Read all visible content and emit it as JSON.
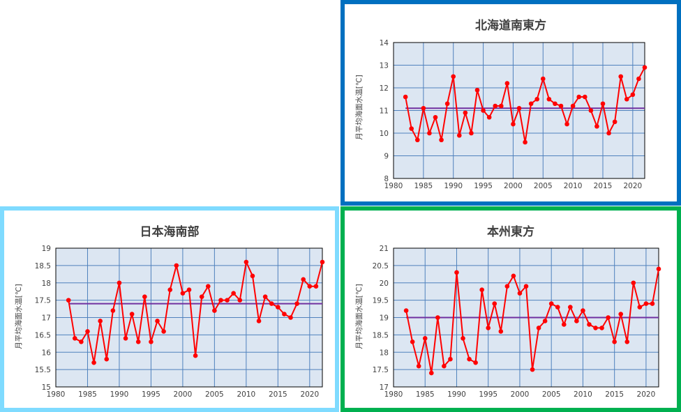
{
  "colors": {
    "border_top_right": "#0070c0",
    "border_bottom_left": "#7fdbff",
    "border_bottom_right": "#00b050",
    "series": "#ff0000",
    "average": "#7030a0",
    "plot_bg": "#dce6f2",
    "grid": "#4f81bd"
  },
  "chart_data": [
    {
      "id": "hokkaido",
      "type": "line",
      "title": "北海道南東方",
      "ylabel": "月平均海面水温[℃]",
      "xlabel": "",
      "xlim": [
        1980,
        2022
      ],
      "ylim": [
        8,
        14
      ],
      "xticks": [
        "1980",
        "1985",
        "1990",
        "1995",
        "2000",
        "2005",
        "2010",
        "2015",
        "2020"
      ],
      "yticks": [
        "8",
        "9",
        "10",
        "11",
        "12",
        "13",
        "14"
      ],
      "grid": true,
      "average": 11.1,
      "x": [
        1982,
        1983,
        1984,
        1985,
        1986,
        1987,
        1988,
        1989,
        1990,
        1991,
        1992,
        1993,
        1994,
        1995,
        1996,
        1997,
        1998,
        1999,
        2000,
        2001,
        2002,
        2003,
        2004,
        2005,
        2006,
        2007,
        2008,
        2009,
        2010,
        2011,
        2012,
        2013,
        2014,
        2015,
        2016,
        2017,
        2018,
        2019,
        2020,
        2021,
        2022
      ],
      "values": [
        11.6,
        10.2,
        9.7,
        11.1,
        10.0,
        10.7,
        9.7,
        11.3,
        12.5,
        9.9,
        10.9,
        10.0,
        11.9,
        11.0,
        10.7,
        11.2,
        11.2,
        12.2,
        10.4,
        11.1,
        9.6,
        11.3,
        11.5,
        12.4,
        11.5,
        11.3,
        11.2,
        10.4,
        11.2,
        11.6,
        11.6,
        11.0,
        10.3,
        11.3,
        10.0,
        10.5,
        12.5,
        11.5,
        11.7,
        12.4,
        12.9
      ]
    },
    {
      "id": "japansea",
      "type": "line",
      "title": "日本海南部",
      "ylabel": "月平均海面水温[℃]",
      "xlabel": "",
      "xlim": [
        1980,
        2022
      ],
      "ylim": [
        15,
        19
      ],
      "xticks": [
        "1980",
        "1985",
        "1990",
        "1995",
        "2000",
        "2005",
        "2010",
        "2015",
        "2020"
      ],
      "yticks": [
        "15",
        "15.5",
        "16",
        "16.5",
        "17",
        "17.5",
        "18",
        "18.5",
        "19"
      ],
      "grid": true,
      "average": 17.4,
      "x": [
        1982,
        1983,
        1984,
        1985,
        1986,
        1987,
        1988,
        1989,
        1990,
        1991,
        1992,
        1993,
        1994,
        1995,
        1996,
        1997,
        1998,
        1999,
        2000,
        2001,
        2002,
        2003,
        2004,
        2005,
        2006,
        2007,
        2008,
        2009,
        2010,
        2011,
        2012,
        2013,
        2014,
        2015,
        2016,
        2017,
        2018,
        2019,
        2020,
        2021,
        2022
      ],
      "values": [
        17.5,
        16.4,
        16.3,
        16.6,
        15.7,
        16.9,
        15.8,
        17.2,
        18.0,
        16.4,
        17.1,
        16.3,
        17.6,
        16.3,
        16.9,
        16.6,
        17.8,
        18.5,
        17.7,
        17.8,
        15.9,
        17.6,
        17.9,
        17.2,
        17.5,
        17.5,
        17.7,
        17.5,
        18.6,
        18.2,
        16.9,
        17.6,
        17.4,
        17.3,
        17.1,
        17.0,
        17.4,
        18.1,
        17.9,
        17.9,
        18.6
      ]
    },
    {
      "id": "honshu",
      "type": "line",
      "title": "本州東方",
      "ylabel": "月平均海面水温[℃]",
      "xlabel": "",
      "xlim": [
        1980,
        2022
      ],
      "ylim": [
        17,
        21
      ],
      "xticks": [
        "1980",
        "1985",
        "1990",
        "1995",
        "2000",
        "2005",
        "2010",
        "2015",
        "2020"
      ],
      "yticks": [
        "17",
        "17.5",
        "18",
        "18.5",
        "19",
        "19.5",
        "20",
        "20.5",
        "21"
      ],
      "grid": true,
      "average": 19.0,
      "x": [
        1982,
        1983,
        1984,
        1985,
        1986,
        1987,
        1988,
        1989,
        1990,
        1991,
        1992,
        1993,
        1994,
        1995,
        1996,
        1997,
        1998,
        1999,
        2000,
        2001,
        2002,
        2003,
        2004,
        2005,
        2006,
        2007,
        2008,
        2009,
        2010,
        2011,
        2012,
        2013,
        2014,
        2015,
        2016,
        2017,
        2018,
        2019,
        2020,
        2021,
        2022
      ],
      "values": [
        19.2,
        18.3,
        17.6,
        18.4,
        17.4,
        19.0,
        17.6,
        17.8,
        20.3,
        18.4,
        17.8,
        17.7,
        19.8,
        18.7,
        19.4,
        18.6,
        19.9,
        20.2,
        19.7,
        19.9,
        17.5,
        18.7,
        18.9,
        19.4,
        19.3,
        18.8,
        19.3,
        18.9,
        19.2,
        18.8,
        18.7,
        18.7,
        19.0,
        18.3,
        19.1,
        18.3,
        20.0,
        19.3,
        19.4,
        19.4,
        20.4
      ]
    }
  ]
}
